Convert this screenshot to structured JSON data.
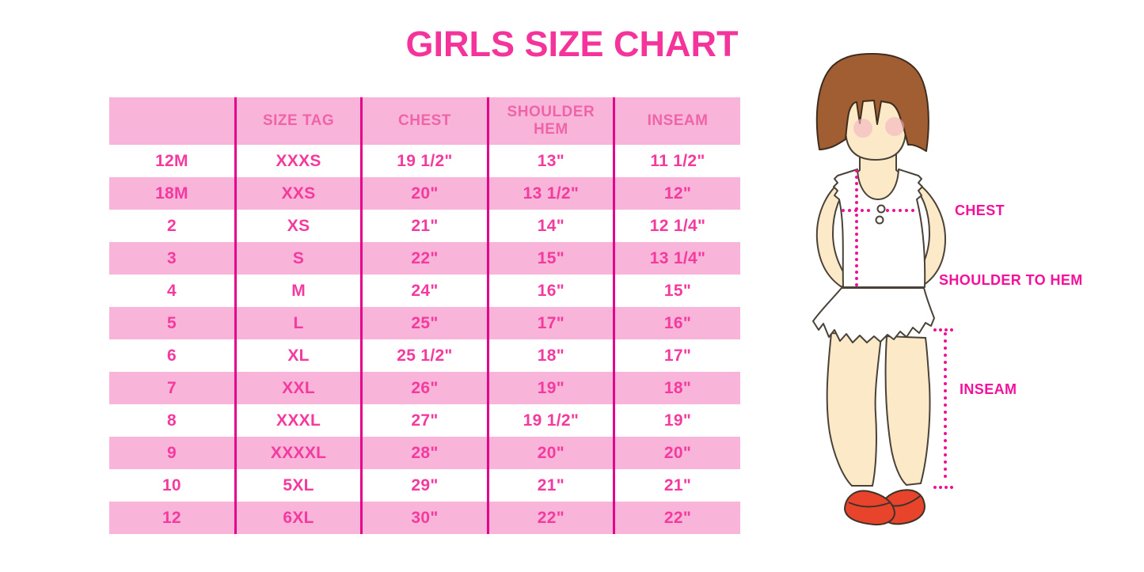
{
  "title": "GIRLS SIZE CHART",
  "chart_data": {
    "type": "table",
    "title": "GIRLS SIZE CHART",
    "columns": [
      "",
      "SIZE TAG",
      "CHEST",
      "SHOULDER HEM",
      "INSEAM"
    ],
    "rows": [
      [
        "12M",
        "XXXS",
        "19 1/2\"",
        "13\"",
        "11 1/2\""
      ],
      [
        "18M",
        "XXS",
        "20\"",
        "13 1/2\"",
        "12\""
      ],
      [
        "2",
        "XS",
        "21\"",
        "14\"",
        "12 1/4\""
      ],
      [
        "3",
        "S",
        "22\"",
        "15\"",
        "13 1/4\""
      ],
      [
        "4",
        "M",
        "24\"",
        "16\"",
        "15\""
      ],
      [
        "5",
        "L",
        "25\"",
        "17\"",
        "16\""
      ],
      [
        "6",
        "XL",
        "25 1/2\"",
        "18\"",
        "17\""
      ],
      [
        "7",
        "XXL",
        "26\"",
        "19\"",
        "18\""
      ],
      [
        "8",
        "XXXL",
        "27\"",
        "19 1/2\"",
        "19\""
      ],
      [
        "9",
        "XXXXL",
        "28\"",
        "20\"",
        "20\""
      ],
      [
        "10",
        "5XL",
        "29\"",
        "21\"",
        "21\""
      ],
      [
        "12",
        "6XL",
        "30\"",
        "22\"",
        "22\""
      ]
    ]
  },
  "figure": {
    "labels": {
      "chest": "CHEST",
      "shoulder_to_hem": "SHOULDER TO HEM",
      "inseam": "INSEAM"
    }
  },
  "colors": {
    "title_pink": "#f4349b",
    "row_band_pink": "#f9b5d9",
    "table_text_pink": "#f43a9e",
    "header_text_pink": "#ef64a9",
    "column_rule_magenta": "#e40089",
    "measure_dot_magenta": "#ef0f96",
    "label_magenta": "#f5109b",
    "hair_brown": "#a05e32",
    "skin": "#fbe9c8",
    "blush_pink": "#f4b8c2",
    "shoe_red": "#e8432b"
  }
}
